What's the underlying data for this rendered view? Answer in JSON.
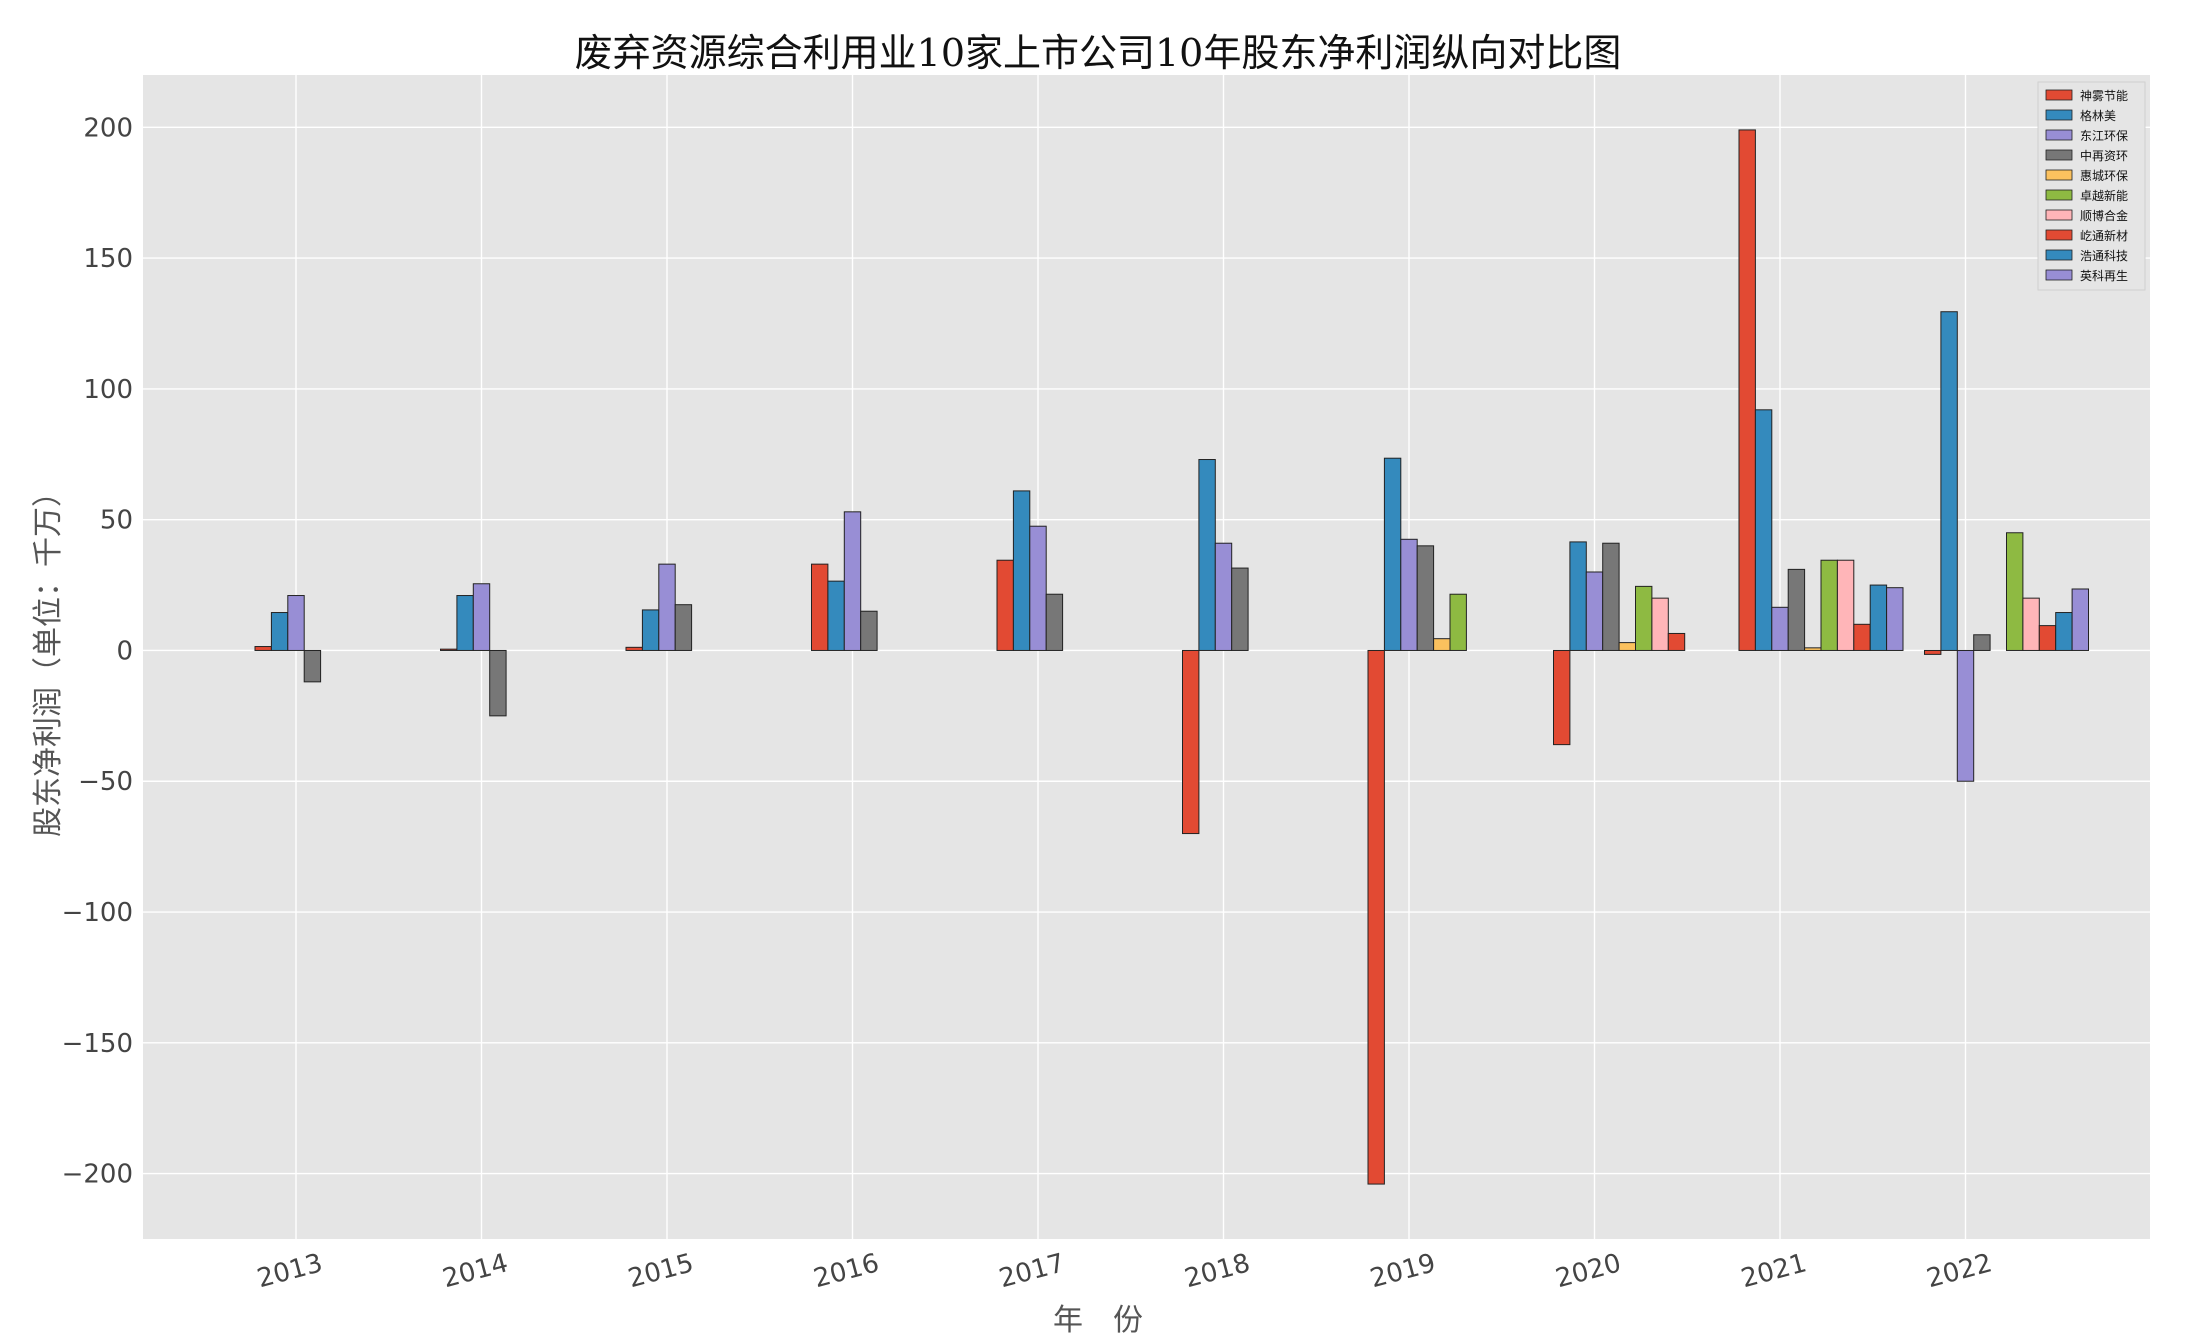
{
  "chart_data": {
    "type": "bar",
    "title": "废弃资源综合利用业10家上市公司10年股东净利润纵向对比图",
    "xlabel": "年　份",
    "ylabel": "股东净利润（单位：千万）",
    "ylim": [
      -225,
      220
    ],
    "yticks": [
      -200,
      -150,
      -100,
      -50,
      0,
      50,
      100,
      150,
      200
    ],
    "ytick_labels": [
      "−200",
      "−150",
      "−100",
      "−50",
      "0",
      "50",
      "100",
      "150",
      "200"
    ],
    "grid": true,
    "legend_position": "top-right",
    "categories": [
      "2013",
      "2014",
      "2015",
      "2016",
      "2017",
      "2018",
      "2019",
      "2020",
      "2021",
      "2022"
    ],
    "series": [
      {
        "name": "神雾节能",
        "color": "#e24a33",
        "values": [
          1.5,
          0.5,
          1.2,
          33,
          34.5,
          -70,
          -204,
          -36,
          199,
          -1.5
        ]
      },
      {
        "name": "格林美",
        "color": "#348abd",
        "values": [
          14.5,
          21,
          15.5,
          26.5,
          61,
          73,
          73.5,
          41.5,
          92,
          129.5
        ]
      },
      {
        "name": "东江环保",
        "color": "#988ed5",
        "values": [
          21,
          25.5,
          33,
          53,
          47.5,
          41,
          42.5,
          30,
          16.5,
          -50
        ]
      },
      {
        "name": "中再资环",
        "color": "#777777",
        "values": [
          -12,
          -25,
          17.5,
          15,
          21.5,
          31.5,
          40,
          41,
          31,
          6
        ]
      },
      {
        "name": "惠城环保",
        "color": "#fbc15e",
        "values": [
          null,
          null,
          null,
          null,
          null,
          null,
          4.5,
          3,
          1,
          null
        ]
      },
      {
        "name": "卓越新能",
        "color": "#8eba42",
        "values": [
          null,
          null,
          null,
          null,
          null,
          null,
          21.5,
          24.5,
          34.5,
          45
        ]
      },
      {
        "name": "顺博合金",
        "color": "#ffb5b8",
        "values": [
          null,
          null,
          null,
          null,
          null,
          null,
          null,
          20,
          34.5,
          20
        ]
      },
      {
        "name": "屹通新材",
        "color": "#e24a33",
        "values": [
          null,
          null,
          null,
          null,
          null,
          null,
          null,
          6.5,
          10,
          9.5
        ]
      },
      {
        "name": "浩通科技",
        "color": "#348abd",
        "values": [
          null,
          null,
          null,
          null,
          null,
          null,
          null,
          null,
          25,
          14.5
        ]
      },
      {
        "name": "英科再生",
        "color": "#988ed5",
        "values": [
          null,
          null,
          null,
          null,
          null,
          null,
          null,
          null,
          24,
          23.5
        ]
      }
    ]
  }
}
